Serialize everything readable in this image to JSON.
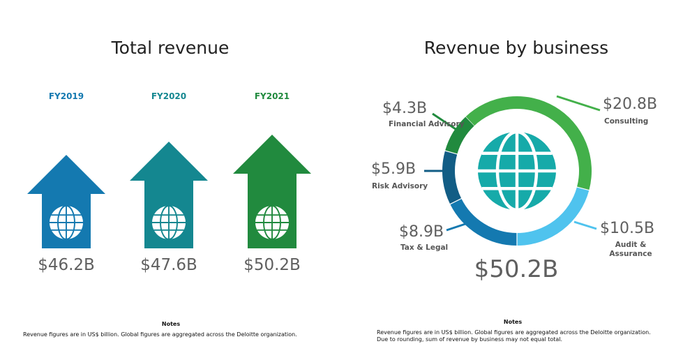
{
  "left": {
    "title": "Total revenue",
    "notes_heading": "Notes",
    "notes": "Revenue figures are in US$ billion. Global figures are aggregated across the Deloitte organization."
  },
  "right": {
    "title": "Revenue by business",
    "total": "$50.2B",
    "notes_heading": "Notes",
    "notes_1": "Revenue figures are in US$ billion. Global figures are aggregated across the Deloitte organization.",
    "notes_2": "Due to rounding, sum of revenue by business may not equal total."
  },
  "chart_data": [
    {
      "type": "bar",
      "title": "Total revenue",
      "categories": [
        "FY2019",
        "FY2020",
        "FY2021"
      ],
      "values": [
        46.2,
        47.6,
        50.2
      ],
      "labels": [
        "$46.2B",
        "$47.6B",
        "$50.2B"
      ],
      "colors": [
        "#1479b0",
        "#148790",
        "#218a3e"
      ]
    },
    {
      "type": "pie",
      "title": "Revenue by business",
      "series": [
        {
          "name": "Consulting",
          "value": 20.8,
          "label": "$20.8B",
          "color": "#43b04a"
        },
        {
          "name": "Audit & Assurance",
          "value": 10.5,
          "label": "$10.5B",
          "color": "#4fc3ee"
        },
        {
          "name": "Tax & Legal",
          "value": 8.9,
          "label": "$8.9B",
          "color": "#1479b0"
        },
        {
          "name": "Risk Advisory",
          "value": 5.9,
          "label": "$5.9B",
          "color": "#125d85"
        },
        {
          "name": "Financial Advisory",
          "value": 4.3,
          "label": "$4.3B",
          "color": "#218a3e"
        }
      ],
      "center_icon": "globe-icon",
      "center_icon_color": "#16aaa9"
    }
  ]
}
